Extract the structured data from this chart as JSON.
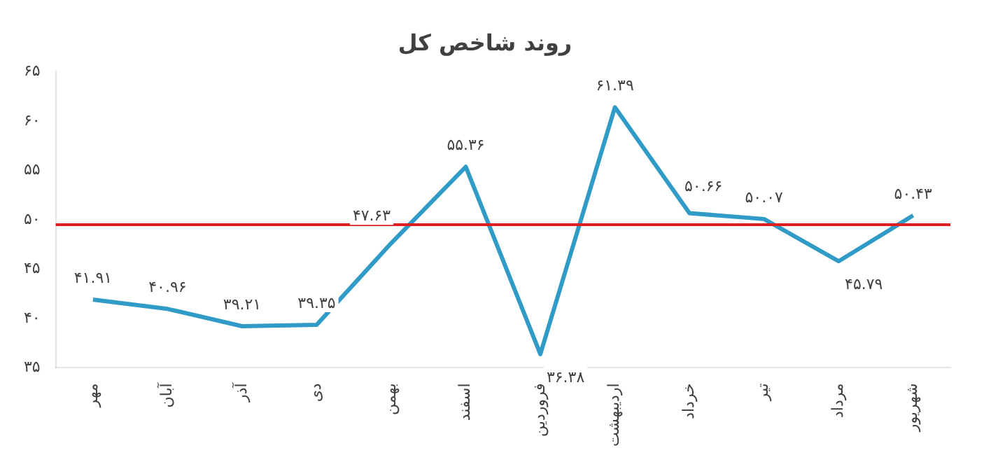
{
  "chart_data": {
    "type": "line",
    "title": "روند شاخص کل",
    "categories": [
      "مهر",
      "آبان",
      "آذر",
      "دی",
      "بهمن",
      "اسفند",
      "فروردین",
      "اردیبهشت",
      "خرداد",
      "تیر",
      "مرداد",
      "شهریور"
    ],
    "series": [
      {
        "color": "#2f9bc6",
        "values": [
          41.91,
          40.96,
          39.21,
          39.35,
          47.63,
          55.36,
          36.38,
          61.39,
          50.66,
          50.07,
          45.79,
          50.43
        ],
        "value_labels": [
          "۴۱.۹۱",
          "۴۰.۹۶",
          "۳۹.۲۱",
          "۳۹.۳۵",
          "۴۷.۶۳",
          "۵۵.۳۶",
          "۳۶.۳۸",
          "۶۱.۳۹",
          "۵۰.۶۶",
          "۵۰.۰۷",
          "۴۵.۷۹",
          "۵۰.۴۳"
        ]
      }
    ],
    "ylim": [
      35,
      65
    ],
    "yticks": [
      {
        "value": 35,
        "label": "۳۵"
      },
      {
        "value": 40,
        "label": "۴۰"
      },
      {
        "value": 45,
        "label": "۴۵"
      },
      {
        "value": 50,
        "label": "۵۰"
      },
      {
        "value": 55,
        "label": "۵۵"
      },
      {
        "value": 60,
        "label": "۶۰"
      },
      {
        "value": 65,
        "label": "۶۵"
      }
    ],
    "ref_lines": [
      {
        "axis": "y",
        "value": 49.5,
        "color": "#e02020"
      }
    ],
    "grid": false,
    "legend": false,
    "marker": "none"
  }
}
